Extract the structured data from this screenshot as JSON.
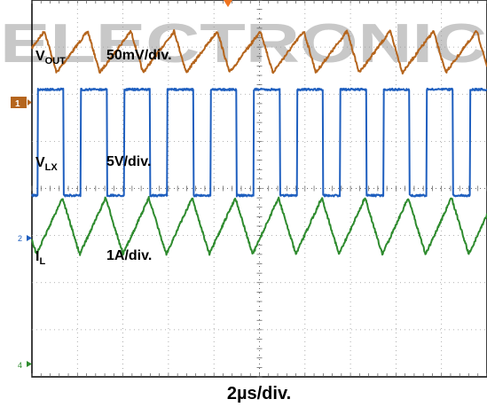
{
  "watermark_text": "ELECTRONIC",
  "chart_data": {
    "type": "line",
    "title": "",
    "grid": true,
    "divisions": {
      "x": 10,
      "y": 8
    },
    "xlabel": "2µs/div.",
    "x_unit": "µs",
    "x_per_div": 2,
    "trigger_marker_color": "#f0741f",
    "series": [
      {
        "name": "VOUT",
        "label_main": "V",
        "label_sub": "OUT",
        "scale_label": "50mV/div.",
        "channel_marker": "1",
        "color": "#b5651d",
        "waveform": "sawtooth",
        "period_us": 1.9,
        "phase_us": 0.55,
        "amplitude_div": 0.44,
        "offset_div": 1.1,
        "rise_fraction": 0.72,
        "falls_first": true
      },
      {
        "name": "VLX",
        "label_main": "V",
        "label_sub": "LX",
        "scale_label": "5V/div.",
        "channel_marker": "2",
        "color": "#1f5fbf",
        "waveform": "pulse",
        "period_us": 1.9,
        "phase_us": 0.25,
        "duty_high": 0.6,
        "high_div": 2.5,
        "low_div": 0.25,
        "offset_div": 3.15
      },
      {
        "name": "IL",
        "label_main": "I",
        "label_sub": "L",
        "scale_label": "1A/div.",
        "channel_marker": "4",
        "color": "#2e8b2e",
        "waveform": "sawtooth",
        "period_us": 1.9,
        "phase_us": 0.2,
        "amplitude_div": 0.6,
        "offset_div": 4.8,
        "rise_fraction": 0.6,
        "falls_first": false
      }
    ]
  }
}
